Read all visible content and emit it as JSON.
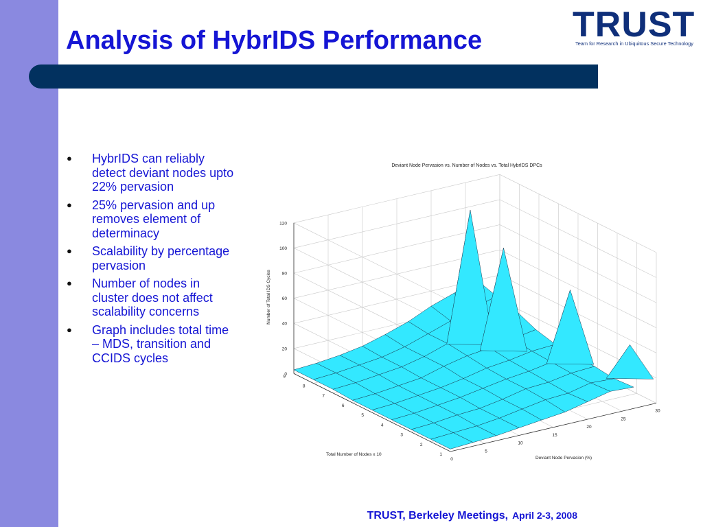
{
  "slide": {
    "title": "Analysis of HybrIDS Performance",
    "footer_org": "TRUST, Berkeley Meetings,",
    "footer_date": "April 2-3, 2008"
  },
  "logo": {
    "word": "TRUST",
    "tagline": "Team for Research in Ubiquitous Secure Technology"
  },
  "bullets": [
    "HybrIDS can reliably detect deviant nodes upto 22% pervasion",
    "25% pervasion and up removes element of determinacy",
    "Scalability by percentage pervasion",
    "Number of nodes in cluster does not affect scalability concerns",
    "Graph includes total time – MDS, transition and CCIDS cycles"
  ],
  "colors": {
    "left_bar": "#8a89e0",
    "title_band": "#02315f",
    "title_text": "#1515d4",
    "surface_face": "#33e8ff",
    "surface_edge": "#1b3c55"
  },
  "chart_data": {
    "type": "surface",
    "title": "Deviant Node Pervasion vs. Number of Nodes vs. Total HybrIDS DPCs",
    "xlabel": "Total Number of Nodes x 10",
    "ylabel": "Deviant Node Pervasion (%)",
    "zlabel": "Number of Total IDS Cycles",
    "x_ticks": [
      "1",
      "2",
      "3",
      "4",
      "5",
      "6",
      "7",
      "8",
      "9"
    ],
    "y_ticks": [
      "0",
      "5",
      "10",
      "15",
      "20",
      "25",
      "30"
    ],
    "z_ticks": [
      "0",
      "20",
      "40",
      "60",
      "80",
      "100",
      "120"
    ],
    "x_range": [
      1,
      9
    ],
    "y_range": [
      0,
      30
    ],
    "z_range": [
      0,
      120
    ],
    "grid": true,
    "pervasion": [
      0,
      3.3,
      6.7,
      10,
      13.3,
      16.7,
      20,
      23.3,
      26.7
    ],
    "nodes": [
      1,
      2,
      3,
      4,
      5,
      6,
      7,
      8,
      9
    ],
    "values": [
      [
        2,
        3,
        4,
        6,
        8,
        10,
        14,
        18,
        17
      ],
      [
        2,
        3,
        4,
        6,
        9,
        12,
        13,
        17,
        16
      ],
      [
        2,
        3,
        5,
        6,
        9,
        13,
        14,
        17,
        18
      ],
      [
        2,
        3,
        5,
        7,
        10,
        13,
        15,
        18,
        19
      ],
      [
        2,
        3,
        5,
        7,
        10,
        14,
        16,
        19,
        20
      ],
      [
        2,
        3,
        5,
        7,
        12,
        16,
        18,
        21,
        24
      ],
      [
        3,
        4,
        6,
        8,
        12,
        18,
        22,
        27,
        31
      ],
      [
        3,
        4,
        6,
        8,
        12,
        18,
        24,
        30,
        35
      ],
      [
        3,
        4,
        6,
        9,
        14,
        20,
        28,
        34,
        40
      ]
    ],
    "peaks": [
      {
        "nodes": 7,
        "pervasion": 20,
        "value": 120
      },
      {
        "nodes": 6,
        "pervasion": 22,
        "value": 95
      },
      {
        "nodes": 4,
        "pervasion": 26,
        "value": 72
      },
      {
        "nodes": 2,
        "pervasion": 29,
        "value": 40
      }
    ]
  }
}
